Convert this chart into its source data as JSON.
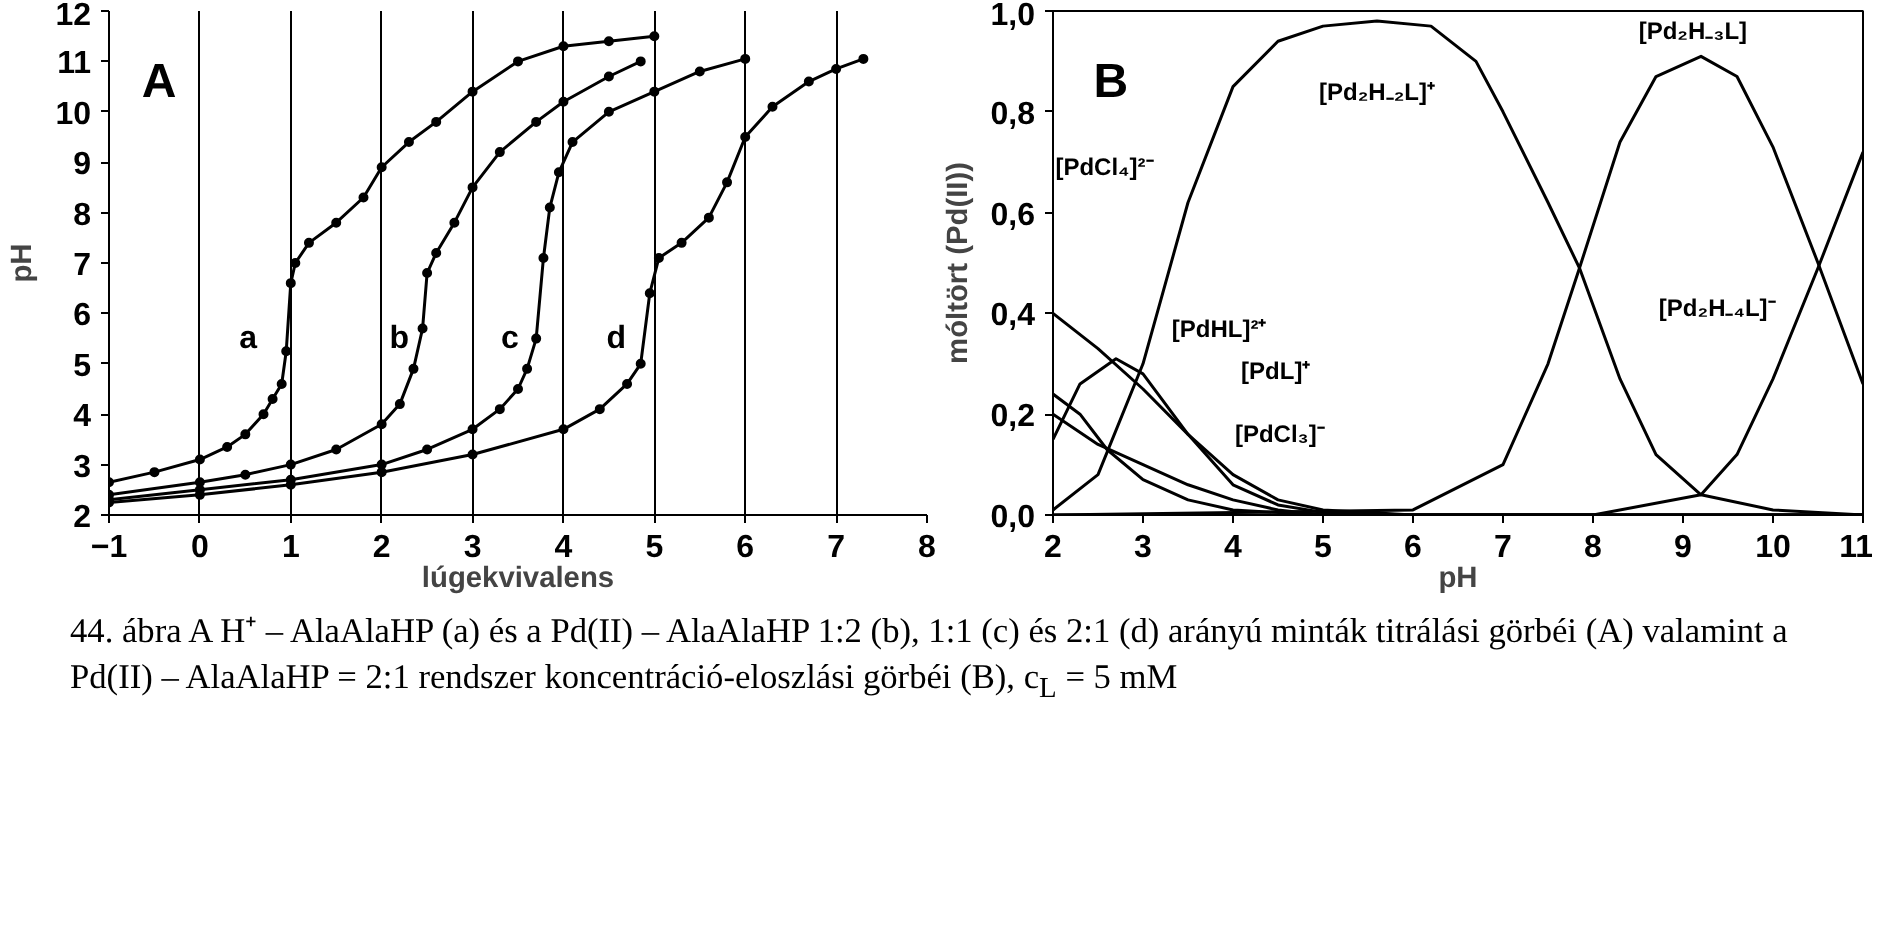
{
  "chart_data": [
    {
      "type": "line",
      "marker": "circle",
      "xlabel": "lúgekvivalens",
      "ylabel": "pH",
      "xlim": [
        -1,
        8
      ],
      "ylim": [
        2,
        12
      ],
      "xticks": [
        -1,
        0,
        1,
        2,
        3,
        4,
        5,
        6,
        7,
        8
      ],
      "yticks": [
        2,
        3,
        4,
        5,
        6,
        7,
        8,
        9,
        10,
        11,
        12
      ],
      "grid": "x",
      "series": [
        {
          "color": "#000000",
          "x": [
            -1,
            -0.5,
            0,
            0.3,
            0.5,
            0.7,
            0.8,
            0.9,
            0.95,
            1.0,
            1.05,
            1.2,
            1.5,
            1.8,
            2.0,
            2.3,
            2.6,
            3.0,
            3.5,
            4.0,
            4.5,
            5.0
          ],
          "values": [
            2.65,
            2.85,
            3.1,
            3.35,
            3.6,
            4.0,
            4.3,
            4.6,
            5.25,
            6.6,
            7.0,
            7.4,
            7.8,
            8.3,
            8.9,
            9.4,
            9.8,
            10.4,
            11.0,
            11.3,
            11.4,
            11.5
          ]
        },
        {
          "color": "#000000",
          "x": [
            -1,
            0,
            0.5,
            1,
            1.5,
            2.0,
            2.2,
            2.35,
            2.45,
            2.5,
            2.6,
            2.8,
            3.0,
            3.3,
            3.7,
            4.0,
            4.5,
            4.85
          ],
          "values": [
            2.4,
            2.65,
            2.8,
            3.0,
            3.3,
            3.8,
            4.2,
            4.9,
            5.7,
            6.8,
            7.2,
            7.8,
            8.5,
            9.2,
            9.8,
            10.2,
            10.7,
            11.0
          ]
        },
        {
          "color": "#000000",
          "x": [
            -1,
            0,
            1,
            2,
            2.5,
            3.0,
            3.3,
            3.5,
            3.6,
            3.7,
            3.78,
            3.85,
            3.95,
            4.1,
            4.5,
            5.0,
            5.5,
            6.0
          ],
          "values": [
            2.3,
            2.5,
            2.7,
            3.0,
            3.3,
            3.7,
            4.1,
            4.5,
            4.9,
            5.5,
            7.1,
            8.1,
            8.8,
            9.4,
            10.0,
            10.4,
            10.8,
            11.05
          ]
        },
        {
          "color": "#000000",
          "x": [
            -1,
            0,
            1,
            2,
            3,
            4,
            4.4,
            4.7,
            4.85,
            4.95,
            5.05,
            5.3,
            5.6,
            5.8,
            6.0,
            6.3,
            6.7,
            7.0,
            7.3
          ],
          "values": [
            2.25,
            2.4,
            2.6,
            2.85,
            3.2,
            3.7,
            4.1,
            4.6,
            5.0,
            6.4,
            7.1,
            7.4,
            7.9,
            8.6,
            9.5,
            10.1,
            10.6,
            10.85,
            11.05
          ]
        }
      ],
      "annotations": [
        "A",
        "a",
        "b",
        "c",
        "d",
        "44. ábra A H⁺  – AlaAlaHP (a) és a Pd(II) – AlaAlaHP 1:2 (b), 1:1 (c) és 2:1 (d) arányú minták titrálási görbéi (A) valamint a Pd(II) – AlaAlaHP = 2:1 rendszer koncentráció-eloszlási görbéi (B), c$_{L}$ = 5 mM"
      ]
    },
    {
      "type": "line",
      "xlabel": "pH",
      "ylabel": "móltört (Pd(II))",
      "xlim": [
        2,
        11
      ],
      "ylim": [
        0,
        1
      ],
      "xticks": [
        2,
        3,
        4,
        5,
        6,
        7,
        8,
        9,
        10,
        11
      ],
      "yticks": [
        {
          "value": 0,
          "label": "0,0"
        },
        {
          "value": 0.2,
          "label": "0,2"
        },
        {
          "value": 0.4,
          "label": "0,4"
        },
        {
          "value": 0.6,
          "label": "0,6"
        },
        {
          "value": 0.8,
          "label": "0,8"
        },
        {
          "value": 1,
          "label": "1,0"
        }
      ],
      "series": [
        {
          "color": "#000000",
          "x": [
            2,
            2.5,
            3,
            3.5,
            4,
            4.5,
            5,
            6,
            11
          ],
          "values": [
            0.4,
            0.33,
            0.25,
            0.16,
            0.08,
            0.03,
            0.01,
            0,
            0
          ]
        },
        {
          "color": "#000000",
          "x": [
            2,
            2.5,
            3,
            3.5,
            4,
            4.5,
            5,
            11
          ],
          "values": [
            0.2,
            0.14,
            0.1,
            0.06,
            0.03,
            0.01,
            0,
            0
          ]
        },
        {
          "color": "#000000",
          "x": [
            2,
            2.3,
            2.6,
            3,
            3.5,
            4,
            5,
            11
          ],
          "values": [
            0.24,
            0.2,
            0.13,
            0.07,
            0.03,
            0.01,
            0,
            0
          ]
        },
        {
          "color": "#000000",
          "x": [
            2,
            2.3,
            2.7,
            3,
            3.5,
            4,
            4.5,
            5,
            6,
            11
          ],
          "values": [
            0.15,
            0.26,
            0.31,
            0.28,
            0.16,
            0.06,
            0.02,
            0.005,
            0,
            0
          ]
        },
        {
          "color": "#000000",
          "x": [
            2,
            2.5,
            3,
            3.5,
            4,
            4.5,
            5,
            5.6,
            6.2,
            6.7,
            7,
            7.5,
            7.85,
            8.3,
            8.7,
            9.2,
            10,
            11
          ],
          "values": [
            0.01,
            0.08,
            0.3,
            0.62,
            0.85,
            0.94,
            0.97,
            0.98,
            0.97,
            0.9,
            0.8,
            0.62,
            0.49,
            0.27,
            0.12,
            0.04,
            0.01,
            0
          ]
        },
        {
          "color": "#000000",
          "x": [
            2,
            6,
            7,
            7.5,
            7.85,
            8.3,
            8.7,
            9.2,
            9.6,
            10,
            10.5,
            11
          ],
          "values": [
            0,
            0.01,
            0.1,
            0.3,
            0.49,
            0.74,
            0.87,
            0.91,
            0.87,
            0.73,
            0.5,
            0.26
          ]
        },
        {
          "color": "#000000",
          "x": [
            2,
            8,
            9.2,
            9.6,
            10,
            10.5,
            11
          ],
          "values": [
            0,
            0,
            0.04,
            0.12,
            0.27,
            0.49,
            0.72
          ]
        }
      ],
      "annotations": [
        "B",
        "[PdCl₄]²⁻",
        "[PdHL]²⁺",
        "[PdL]⁺",
        "[PdCl₃]⁻",
        "[Pd₂H₋₂L]⁺",
        "[Pd₂H₋₃L]",
        "[Pd₂H₋₄L]⁻"
      ]
    }
  ]
}
